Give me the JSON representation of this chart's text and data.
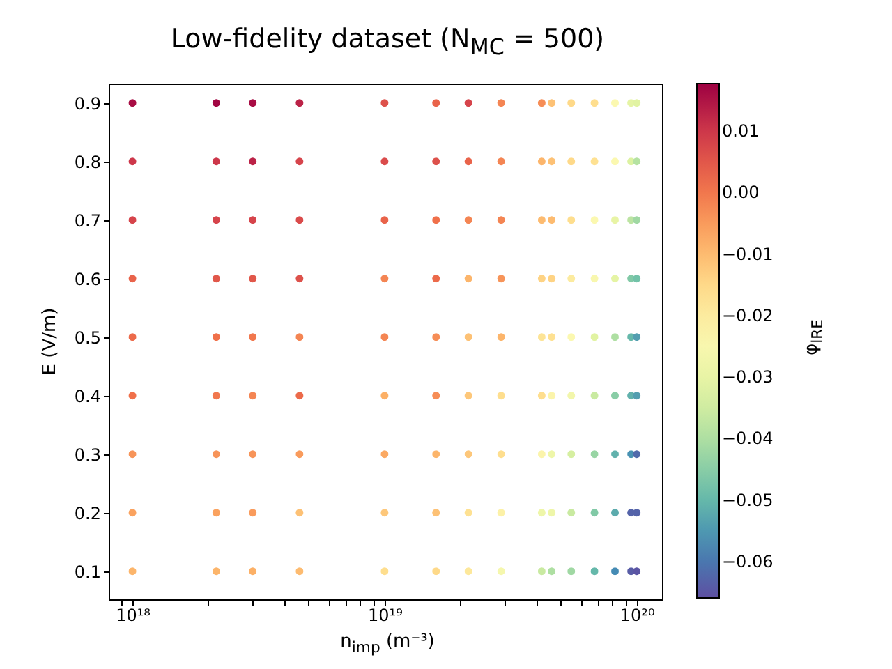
{
  "chart_data": {
    "type": "scatter",
    "title": "Low-fidelity dataset (N$_{MC}$ = 500)",
    "xlabel": "n$_{imp}$ (m⁻³)",
    "ylabel": "E (V/m)",
    "clabel": "φ$_{lRE}$",
    "log": "x",
    "marker": "circle",
    "xlim": [
      8.05e+17,
      1.26e+20
    ],
    "xticks": [
      {
        "value": 9e+17,
        "label": null
      },
      {
        "value": 1e+18,
        "label": "10¹⁸"
      },
      {
        "value": 2e+18,
        "label": null
      },
      {
        "value": 3e+18,
        "label": null
      },
      {
        "value": 4e+18,
        "label": null
      },
      {
        "value": 5e+18,
        "label": null
      },
      {
        "value": 6e+18,
        "label": null
      },
      {
        "value": 7e+18,
        "label": null
      },
      {
        "value": 8e+18,
        "label": null
      },
      {
        "value": 9e+18,
        "label": null
      },
      {
        "value": 1e+19,
        "label": "10¹⁹"
      },
      {
        "value": 2e+19,
        "label": null
      },
      {
        "value": 3e+19,
        "label": null
      },
      {
        "value": 4e+19,
        "label": null
      },
      {
        "value": 5e+19,
        "label": null
      },
      {
        "value": 6e+19,
        "label": null
      },
      {
        "value": 7e+19,
        "label": null
      },
      {
        "value": 8e+19,
        "label": null
      },
      {
        "value": 9e+19,
        "label": null
      },
      {
        "value": 1e+20,
        "label": "10²⁰"
      }
    ],
    "ylim": [
      0.052,
      0.933
    ],
    "yticks": [
      0.1,
      0.2,
      0.3,
      0.4,
      0.5,
      0.6,
      0.7,
      0.8,
      0.9
    ],
    "clim": [
      -0.0659,
      0.0177
    ],
    "cticks": [
      0.01,
      {
        "value": 0,
        "label": "0.00"
      },
      {
        "value": -0.01,
        "label": "−0.01"
      },
      {
        "value": -0.02,
        "label": "−0.02"
      },
      {
        "value": -0.03,
        "label": "−0.03"
      },
      {
        "value": -0.04,
        "label": "−0.04"
      },
      {
        "value": -0.05,
        "label": "−0.05"
      },
      {
        "value": -0.06,
        "label": "−0.06"
      }
    ],
    "x": [
      1e+18,
      1e+18,
      1e+18,
      1e+18,
      1e+18,
      1e+18,
      1e+18,
      1e+18,
      1e+18,
      2.15e+18,
      2.15e+18,
      2.15e+18,
      2.15e+18,
      2.15e+18,
      2.15e+18,
      2.15e+18,
      2.15e+18,
      2.15e+18,
      3e+18,
      3e+18,
      3e+18,
      3e+18,
      3e+18,
      3e+18,
      3e+18,
      3e+18,
      3e+18,
      4.6e+18,
      4.6e+18,
      4.6e+18,
      4.6e+18,
      4.6e+18,
      4.6e+18,
      4.6e+18,
      4.6e+18,
      4.6e+18,
      1e+19,
      1e+19,
      1e+19,
      1e+19,
      1e+19,
      1e+19,
      1e+19,
      1e+19,
      1e+19,
      1.6e+19,
      1.6e+19,
      1.6e+19,
      1.6e+19,
      1.6e+19,
      1.6e+19,
      1.6e+19,
      1.6e+19,
      1.6e+19,
      2.15e+19,
      2.15e+19,
      2.15e+19,
      2.15e+19,
      2.15e+19,
      2.15e+19,
      2.15e+19,
      2.15e+19,
      2.15e+19,
      2.9e+19,
      2.9e+19,
      2.9e+19,
      2.9e+19,
      2.9e+19,
      2.9e+19,
      2.9e+19,
      2.9e+19,
      2.9e+19,
      4.2e+19,
      4.2e+19,
      4.2e+19,
      4.2e+19,
      4.2e+19,
      4.2e+19,
      4.2e+19,
      4.2e+19,
      4.2e+19,
      4.6e+19,
      4.6e+19,
      4.6e+19,
      4.6e+19,
      4.6e+19,
      4.6e+19,
      4.6e+19,
      4.6e+19,
      4.6e+19,
      5.5e+19,
      5.5e+19,
      5.5e+19,
      5.5e+19,
      5.5e+19,
      5.5e+19,
      5.5e+19,
      5.5e+19,
      5.5e+19,
      6.8e+19,
      6.8e+19,
      6.8e+19,
      6.8e+19,
      6.8e+19,
      6.8e+19,
      6.8e+19,
      6.8e+19,
      6.8e+19,
      8.2e+19,
      8.2e+19,
      8.2e+19,
      8.2e+19,
      8.2e+19,
      8.2e+19,
      8.2e+19,
      8.2e+19,
      8.2e+19,
      9.5e+19,
      9.5e+19,
      9.5e+19,
      9.5e+19,
      9.5e+19,
      9.5e+19,
      9.5e+19,
      9.5e+19,
      9.5e+19,
      1e+20,
      1e+20,
      1e+20,
      1e+20,
      1e+20,
      1e+20,
      1e+20,
      1e+20,
      1e+20
    ],
    "values": [
      0.9,
      0.8,
      0.7,
      0.6,
      0.5,
      0.4,
      0.3,
      0.2,
      0.1,
      0.9,
      0.8,
      0.7,
      0.6,
      0.5,
      0.4,
      0.3,
      0.2,
      0.1,
      0.9,
      0.8,
      0.7,
      0.6,
      0.5,
      0.4,
      0.3,
      0.2,
      0.1,
      0.9,
      0.8,
      0.7,
      0.6,
      0.5,
      0.4,
      0.3,
      0.2,
      0.1,
      0.9,
      0.8,
      0.7,
      0.6,
      0.5,
      0.4,
      0.3,
      0.2,
      0.1,
      0.9,
      0.8,
      0.7,
      0.6,
      0.5,
      0.4,
      0.3,
      0.2,
      0.1,
      0.9,
      0.8,
      0.7,
      0.6,
      0.5,
      0.4,
      0.3,
      0.2,
      0.1,
      0.9,
      0.8,
      0.7,
      0.6,
      0.5,
      0.4,
      0.3,
      0.2,
      0.1,
      0.9,
      0.8,
      0.7,
      0.6,
      0.5,
      0.4,
      0.3,
      0.2,
      0.1,
      0.9,
      0.8,
      0.7,
      0.6,
      0.5,
      0.4,
      0.3,
      0.2,
      0.1,
      0.9,
      0.8,
      0.7,
      0.6,
      0.5,
      0.4,
      0.3,
      0.2,
      0.1,
      0.9,
      0.8,
      0.7,
      0.6,
      0.5,
      0.4,
      0.3,
      0.2,
      0.1,
      0.9,
      0.8,
      0.7,
      0.6,
      0.5,
      0.4,
      0.3,
      0.2,
      0.1,
      0.9,
      0.8,
      0.7,
      0.6,
      0.5,
      0.4,
      0.3,
      0.2,
      0.1,
      0.9,
      0.8,
      0.7,
      0.6,
      0.5,
      0.4,
      0.3,
      0.2,
      0.1
    ],
    "cvalues": [
      0.016,
      0.01,
      0.008,
      0.003,
      0.002,
      0.001,
      -0.004,
      -0.006,
      -0.009,
      0.017,
      0.01,
      0.008,
      0.005,
      0.001,
      0.0,
      -0.004,
      -0.006,
      -0.009,
      0.016,
      0.013,
      0.008,
      0.005,
      0.0,
      -0.002,
      -0.004,
      -0.005,
      -0.008,
      0.013,
      0.008,
      0.007,
      0.006,
      -0.002,
      0.002,
      -0.005,
      -0.011,
      -0.01,
      0.006,
      0.007,
      0.003,
      -0.002,
      -0.002,
      -0.008,
      -0.007,
      -0.012,
      -0.016,
      0.003,
      0.006,
      0.001,
      0.002,
      -0.003,
      -0.003,
      -0.009,
      -0.011,
      -0.015,
      0.008,
      0.003,
      -0.002,
      -0.009,
      -0.011,
      -0.012,
      -0.012,
      -0.017,
      -0.019,
      -0.002,
      -0.002,
      -0.002,
      -0.004,
      -0.009,
      -0.016,
      -0.016,
      -0.022,
      -0.026,
      -0.003,
      -0.009,
      -0.01,
      -0.014,
      -0.018,
      -0.016,
      -0.023,
      -0.028,
      -0.036,
      -0.011,
      -0.011,
      -0.01,
      -0.014,
      -0.017,
      -0.023,
      -0.028,
      -0.028,
      -0.04,
      -0.015,
      -0.015,
      -0.016,
      -0.02,
      -0.024,
      -0.027,
      -0.034,
      -0.036,
      -0.042,
      -0.016,
      -0.017,
      -0.024,
      -0.025,
      -0.032,
      -0.036,
      -0.043,
      -0.046,
      -0.05,
      -0.024,
      -0.024,
      -0.03,
      -0.031,
      -0.04,
      -0.045,
      -0.051,
      -0.052,
      -0.057,
      -0.031,
      -0.033,
      -0.038,
      -0.046,
      -0.05,
      -0.051,
      -0.056,
      -0.063,
      -0.064,
      -0.032,
      -0.039,
      -0.042,
      -0.048,
      -0.054,
      -0.054,
      -0.062,
      -0.063,
      -0.065
    ]
  }
}
